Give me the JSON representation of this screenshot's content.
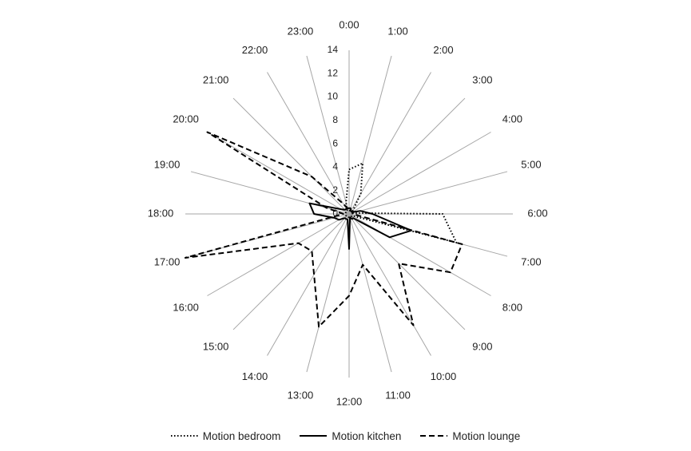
{
  "chart_data": {
    "type": "radar",
    "title": "",
    "categories": [
      "0:00",
      "1:00",
      "2:00",
      "3:00",
      "4:00",
      "5:00",
      "6:00",
      "7:00",
      "8:00",
      "9:00",
      "10:00",
      "11:00",
      "12:00",
      "13:00",
      "14:00",
      "15:00",
      "16:00",
      "17:00",
      "18:00",
      "19:00",
      "20:00",
      "21:00",
      "22:00",
      "23:00"
    ],
    "radial_ticks": [
      "0",
      "2",
      "4",
      "6",
      "8",
      "10",
      "12",
      "14"
    ],
    "rlim": [
      0,
      14
    ],
    "legend_position": "bottom",
    "series": [
      {
        "name": "Motion bedroom",
        "style": "dotted",
        "color": "#000000",
        "values": [
          3.8,
          4.5,
          2.0,
          0.5,
          0.3,
          0.3,
          8.0,
          9.5,
          0.3,
          0.3,
          0.3,
          0.3,
          0.3,
          0.3,
          0.3,
          0.3,
          0.3,
          0.3,
          0.3,
          0.3,
          0.3,
          0.3,
          0.3,
          1.0
        ]
      },
      {
        "name": "Motion kitchen",
        "style": "solid",
        "color": "#000000",
        "values": [
          0.5,
          0.5,
          0.3,
          0.3,
          0.3,
          1.0,
          2.0,
          5.5,
          4.0,
          0.5,
          0.5,
          0.3,
          3.0,
          0.5,
          0.5,
          0.5,
          1.0,
          1.3,
          3.0,
          3.5,
          0.8,
          0.5,
          0.5,
          0.5
        ]
      },
      {
        "name": "Motion lounge",
        "style": "dashed",
        "color": "#000000",
        "values": [
          0.3,
          0.3,
          0.3,
          0.3,
          0.3,
          0.3,
          0.3,
          10.0,
          10.0,
          6.0,
          11.0,
          4.5,
          7.0,
          10.0,
          6.0,
          4.5,
          5.0,
          14.5,
          0.5,
          2.0,
          14.0,
          4.5,
          1.0,
          0.5
        ]
      }
    ]
  }
}
